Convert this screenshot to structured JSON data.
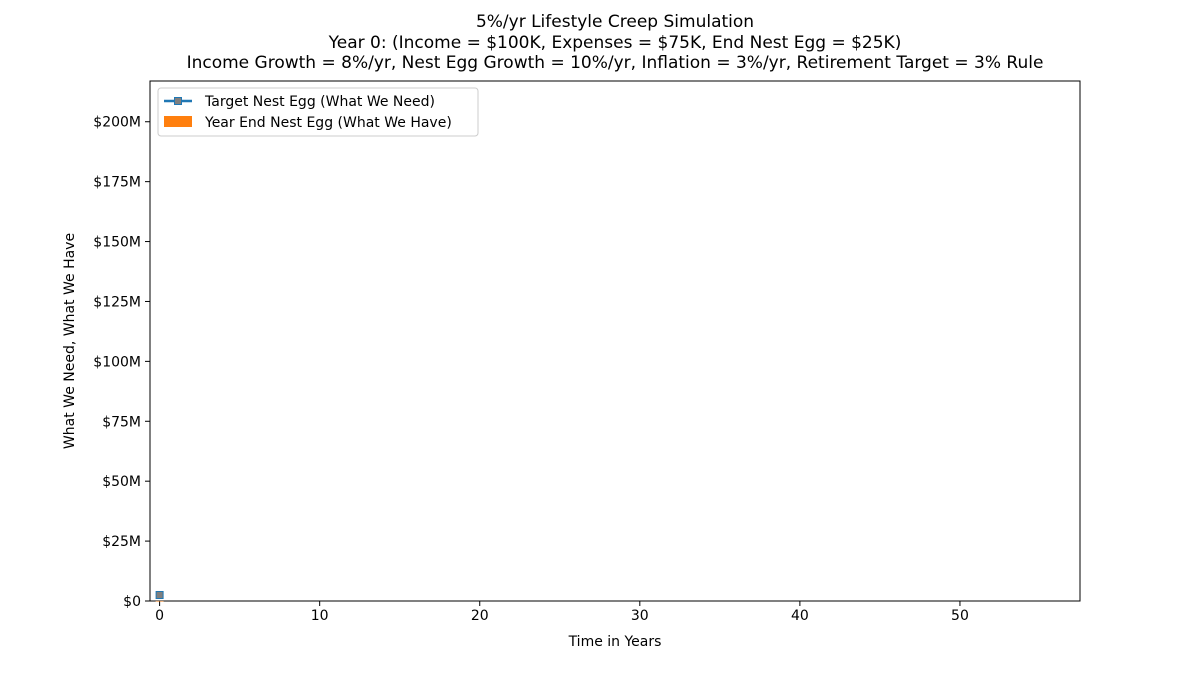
{
  "chart_data": {
    "type": "line",
    "title_lines": [
      "5%/yr Lifestyle Creep Simulation",
      "Year 0: (Income = $100K, Expenses = $75K, End Nest Egg = $25K)",
      "Income Growth = 8%/yr, Nest Egg Growth = 10%/yr, Inflation = 3%/yr, Retirement Target = 3% Rule"
    ],
    "xlabel": "Time in Years",
    "ylabel": "What We Need, What We Have",
    "xlim": [
      -0.6,
      57.5
    ],
    "ylim": [
      0,
      217
    ],
    "y_units": "millions of dollars",
    "xticks": [
      0,
      10,
      20,
      30,
      40,
      50
    ],
    "yticks": [
      {
        "value": 0,
        "label": "$0"
      },
      {
        "value": 25,
        "label": "$25M"
      },
      {
        "value": 50,
        "label": "$50M"
      },
      {
        "value": 75,
        "label": "$75M"
      },
      {
        "value": 100,
        "label": "$100M"
      },
      {
        "value": 125,
        "label": "$125M"
      },
      {
        "value": 150,
        "label": "$150M"
      },
      {
        "value": 175,
        "label": "$175M"
      },
      {
        "value": 200,
        "label": "$200M"
      }
    ],
    "grid": false,
    "legend_position": "upper-left",
    "series": [
      {
        "name": "Target Nest Egg (What We Need)",
        "kind": "line",
        "color": "#1f77b4",
        "marker_color": "#7f7f7f",
        "marker": "square",
        "x": [
          0
        ],
        "values": [
          2.5
        ]
      },
      {
        "name": "Year End Nest Egg (What We Have)",
        "kind": "bar",
        "color": "#ff7f0e",
        "x": [
          0
        ],
        "values": [
          0.025
        ]
      }
    ]
  }
}
